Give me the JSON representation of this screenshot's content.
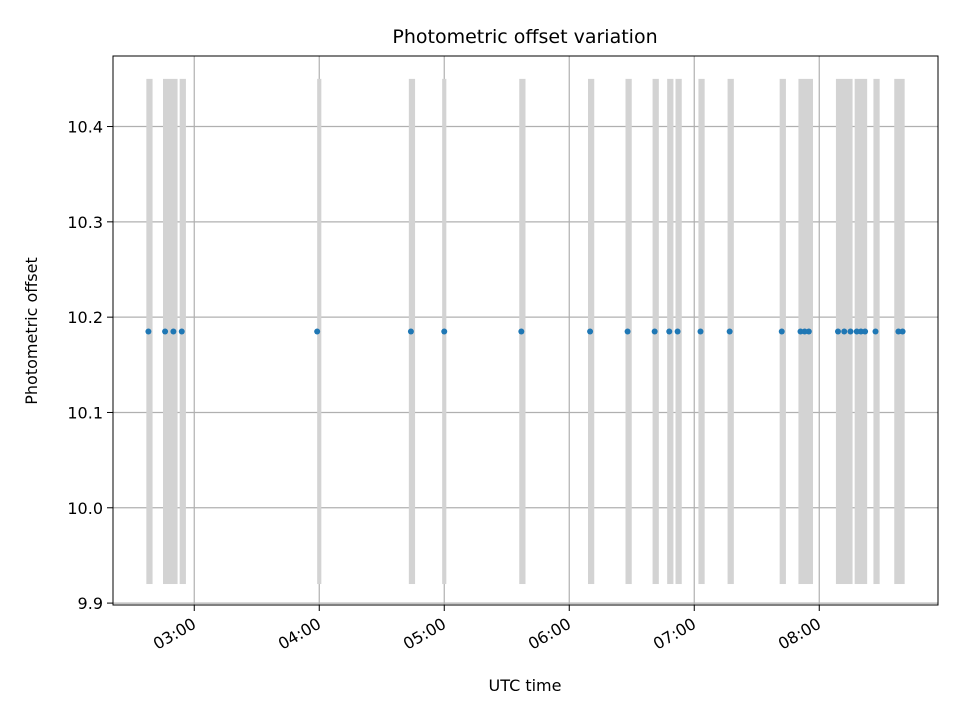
{
  "chart_data": {
    "type": "scatter",
    "title": "Photometric offset variation",
    "xlabel": "UTC time",
    "ylabel": "Photometric offset",
    "x_unit": "time of day (UTC, HH:MM)",
    "xlim": [
      "02:21",
      "08:57"
    ],
    "ylim": [
      9.898,
      10.474
    ],
    "x_ticks": [
      "03:00",
      "04:00",
      "05:00",
      "06:00",
      "07:00",
      "08:00"
    ],
    "y_ticks": [
      "9.9",
      "10.0",
      "10.1",
      "10.2",
      "10.3",
      "10.4"
    ],
    "grid": true,
    "point_color": "#1f77b4",
    "band_color": "#d3d3d3",
    "band_range": [
      9.92,
      10.45
    ],
    "series": [
      {
        "x": [
          "02:38",
          "02:46",
          "02:50",
          "02:54",
          "03:59",
          "04:44",
          "05:00",
          "05:37",
          "06:10",
          "06:28",
          "06:41",
          "06:48",
          "06:52",
          "07:03",
          "07:17",
          "07:42",
          "07:51",
          "07:53",
          "07:55",
          "08:09",
          "08:12",
          "08:15",
          "08:18",
          "08:20",
          "08:22",
          "08:27",
          "08:38",
          "08:40"
        ],
        "y": [
          10.185,
          10.185,
          10.185,
          10.185,
          10.185,
          10.185,
          10.185,
          10.185,
          10.185,
          10.185,
          10.185,
          10.185,
          10.185,
          10.185,
          10.185,
          10.185,
          10.185,
          10.185,
          10.185,
          10.185,
          10.185,
          10.185,
          10.185,
          10.185,
          10.185,
          10.185,
          10.185,
          10.185
        ]
      }
    ],
    "bands": [
      [
        "02:37",
        "02:40"
      ],
      [
        "02:45",
        "02:52"
      ],
      [
        "02:53",
        "02:56"
      ],
      [
        "03:59",
        "04:01"
      ],
      [
        "04:43",
        "04:46"
      ],
      [
        "04:59",
        "05:01"
      ],
      [
        "05:36",
        "05:39"
      ],
      [
        "06:09",
        "06:12"
      ],
      [
        "06:27",
        "06:30"
      ],
      [
        "06:40",
        "06:43"
      ],
      [
        "06:47",
        "06:50"
      ],
      [
        "06:51",
        "06:54"
      ],
      [
        "07:02",
        "07:05"
      ],
      [
        "07:16",
        "07:19"
      ],
      [
        "07:41",
        "07:44"
      ],
      [
        "07:50",
        "07:57"
      ],
      [
        "08:08",
        "08:16"
      ],
      [
        "08:17",
        "08:23"
      ],
      [
        "08:26",
        "08:29"
      ],
      [
        "08:36",
        "08:41"
      ]
    ]
  }
}
